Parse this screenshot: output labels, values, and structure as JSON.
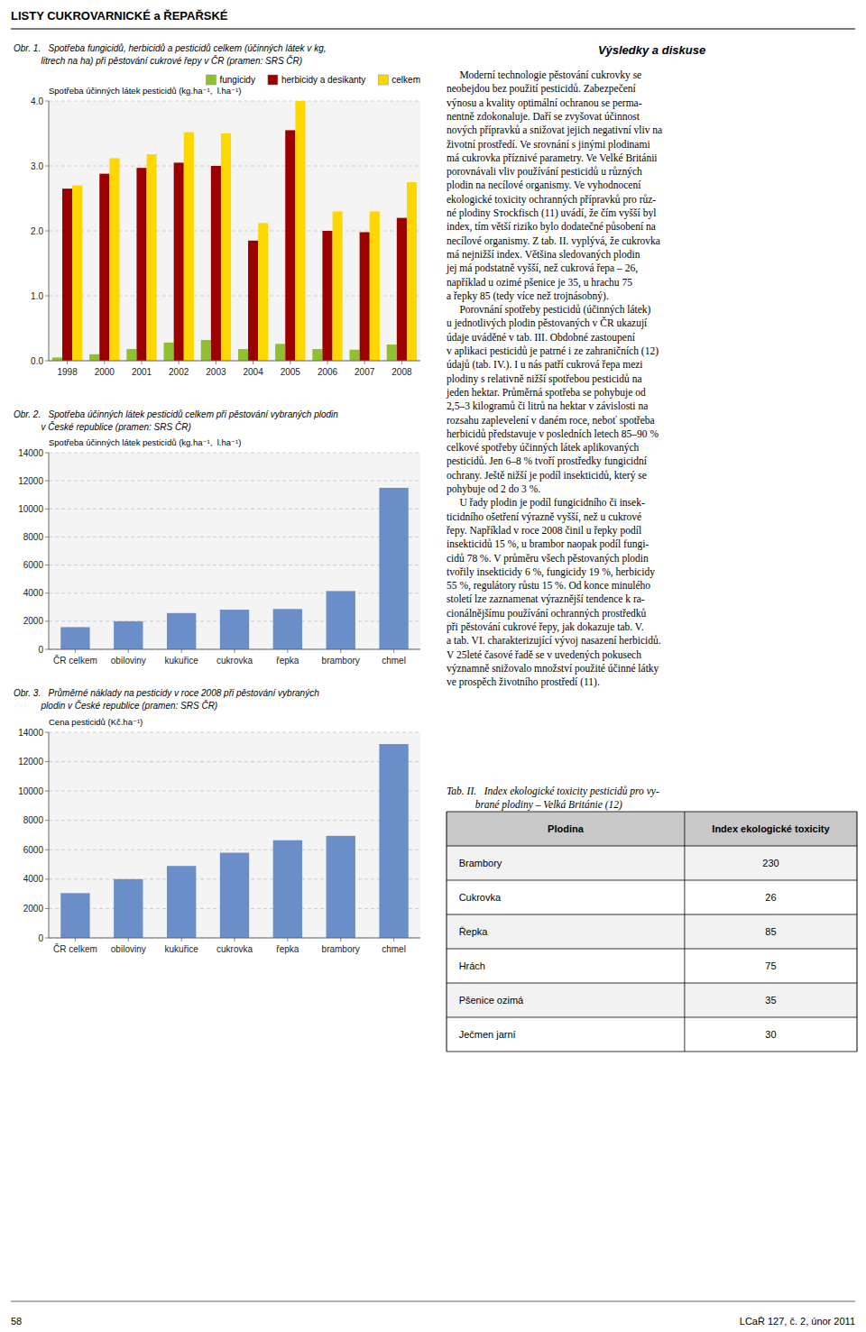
{
  "page": {
    "title": "LISTY CUKROVARNICKÉ a ŘEPAŘSKÉ",
    "footer_left": "58",
    "footer_right": "LCaŘ 127, č. 2, únor 2011",
    "right_title": "Výsledky a diskuse",
    "body_text": [
      "     Moderní technologie pěstování cukrovky se",
      "neobejdou bez použití pesticidů. Zabezpečení",
      "výnosu a kvality optimální ochranou se perma-",
      "nentně zdokonaluje. Daří se zvyšovat účinnost",
      "nových přípravků a snižovat jejich negativní vliv na",
      "životní prostředí. Ve srovnání s jinými plodinami",
      "má cukrovka příznivé parametry. Ve Velké Británii",
      "porovnávali vliv používání pesticidů u různých",
      "plodin na necílové organismy. Ve vyhodnocení",
      "ekologické toxicity ochranných přípravků pro růz-",
      "né plodiny Sᴛockfisch (11) uvádí, že čím vyšší byl",
      "index, tím větší riziko bylo dodatečné působení na",
      "necílové organismy. Z tab. II. vyplývá, že cukrovka",
      "má nejnižší index. Většina sledovaných plodin",
      "jej má podstatně vyšší, než cukrová řepa – 26,",
      "například u ozimé pšenice je 35, u hrachu 75",
      "a řepky 85 (tedy více než trojnásobný).",
      "     Porovnání spotřeby pesticidů (účinných látek)",
      "u jednotlivých plodin pěstovaných v ČR ukazují",
      "údaje uváděné v tab. III. Obdobné zastoupení",
      "v aplikaci pesticidů je patrné i ze zahraničních (12)",
      "údajů (tab. IV.). I u nás patří cukrová řepa mezi",
      "plodiny s relativně nižší spotřebou pesticidů na",
      "jeden hektar. Průměrná spotřeba se pohybuje od",
      "2,5–3 kilogramů či litrů na hektar v závislosti na",
      "rozsahu zaplevelení v daném roce, neboť spotřeba",
      "herbicidů představuje v posledních letech 85–90 %",
      "celkové spotřeby účinných látek aplikovaných",
      "pesticidů. Jen 6–8 % tvoří prostředky fungicidní",
      "ochrany. Ještě nižší je podíl insekticidů, který se",
      "pohybuje od 2 do 3 %.",
      "     U řady plodin je podíl fungicidního či insek-",
      "ticidního ošetření výrazně vyšší, než u cukrové",
      "řepy. Například v roce 2008 činil u řepky podíl",
      "insekticidů 15 %, u brambor naopak podíl fungi-",
      "cidů 78 %. V průměru všech pěstovaných plodin",
      "tvořily insekticidy 6 %, fungicidy 19 %, herbicidy",
      "55 %, regulátory růstu 15 %. Od konce minulého",
      "století lze zaznamenat výraznější tendence k ra-",
      "cionálnějšímu používání ochranných prostředků",
      "při pěstování cukrové řepy, jak dokazuje tab. V.",
      "a tab. VI. charakterizující vývoj nasazení herbicidů.",
      "V 25leté časové řadě se v uvedených pokusech",
      "významně snižovalo množství použité účinné látky",
      "ve prospěch životního prostředí (11)."
    ],
    "table": {
      "title": [
        "Tab. II.   Index ekologické toxicity pesticidů pro vy-",
        "           brané plodiny – Velká Británie (12)"
      ],
      "columns": [
        "Plodina",
        "Index ekologické toxicity"
      ],
      "rows": [
        [
          "Brambory",
          "230"
        ],
        [
          "Cukrovka",
          "26"
        ],
        [
          "Řepka",
          "85"
        ],
        [
          "Hrách",
          "75"
        ],
        [
          "Pšenice ozimá",
          "35"
        ],
        [
          "Ječmen jarní",
          "30"
        ]
      ]
    }
  },
  "chart_data": [
    {
      "type": "bar",
      "title": "Obr. 1.   Spotřeba fungicidů, herbicidů a pesticidů celkem (účinných látek v kg,",
      "subtitle": "           litrech na ha) při pěstování cukrové řepy v ČR (pramen: SRS ČR)",
      "y_label": "Spotřeba účinných látek pesticidů (kg.ha⁻¹,  l.ha⁻¹)",
      "categories": [
        "1998",
        "2000",
        "2001",
        "2002",
        "2003",
        "2004",
        "2005",
        "2006",
        "2007",
        "2008"
      ],
      "series": [
        {
          "name": "fungicidy",
          "color": "#90C030",
          "values": [
            0.05,
            0.1,
            0.18,
            0.28,
            0.32,
            0.18,
            0.26,
            0.18,
            0.17,
            0.25
          ]
        },
        {
          "name": "herbicidy a desikanty",
          "color": "#9B0000",
          "values": [
            2.65,
            2.88,
            2.97,
            3.05,
            3.0,
            1.85,
            3.55,
            2.0,
            1.98,
            2.2
          ]
        },
        {
          "name": "celkem",
          "color": "#FFD700",
          "values": [
            2.7,
            3.12,
            3.18,
            3.52,
            3.5,
            2.12,
            4.0,
            2.3,
            2.3,
            2.75
          ]
        }
      ],
      "ylim": [
        0,
        4.0
      ],
      "yticks": [
        {
          "value": 0,
          "label": "0.0"
        },
        {
          "value": 1.0,
          "label": "1.0"
        },
        {
          "value": 2.0,
          "label": "2.0"
        },
        {
          "value": 3.0,
          "label": "3.0"
        },
        {
          "value": 4.0,
          "label": "4.0"
        }
      ],
      "grid": true,
      "legend": "upper right"
    },
    {
      "type": "bar",
      "title": "Obr. 2.   Spotřeba účinných látek pesticidů celkem při pěstování vybraných plodin",
      "subtitle": "           v České republice (pramen: SRS ČR)",
      "y_label": "Spotřeba účinných látek pesticidů (kg.ha⁻¹,  l.ha⁻¹)",
      "categories": [
        "ČR celkem",
        "obiloviny",
        "kukuřice",
        "cukrovka",
        "řepka",
        "brambory",
        "chmel"
      ],
      "values": [
        1580,
        2000,
        2580,
        2820,
        2870,
        4150,
        11500
      ],
      "color": "#6B8EC8",
      "ylim": [
        0,
        14000
      ],
      "yticks": [
        0,
        2000,
        4000,
        6000,
        8000,
        10000,
        12000,
        14000
      ],
      "grid": true
    },
    {
      "type": "bar",
      "title": "Obr. 3.   Průměrné náklady na pesticidy v roce 2008 při pěstování vybraných",
      "subtitle": "           plodin v České republice (pramen: SRS ČR)",
      "y_label": "Cena pesticidů (Kč.ha⁻¹)",
      "categories": [
        "ČR celkem",
        "obiloviny",
        "kukuřice",
        "cukrovka",
        "řepka",
        "brambory",
        "chmel"
      ],
      "values": [
        3050,
        4000,
        4900,
        5800,
        6650,
        6950,
        13200
      ],
      "color": "#6B8EC8",
      "ylim": [
        0,
        14000
      ],
      "yticks": [
        0,
        2000,
        4000,
        6000,
        8000,
        10000,
        12000,
        14000
      ],
      "grid": true
    }
  ]
}
